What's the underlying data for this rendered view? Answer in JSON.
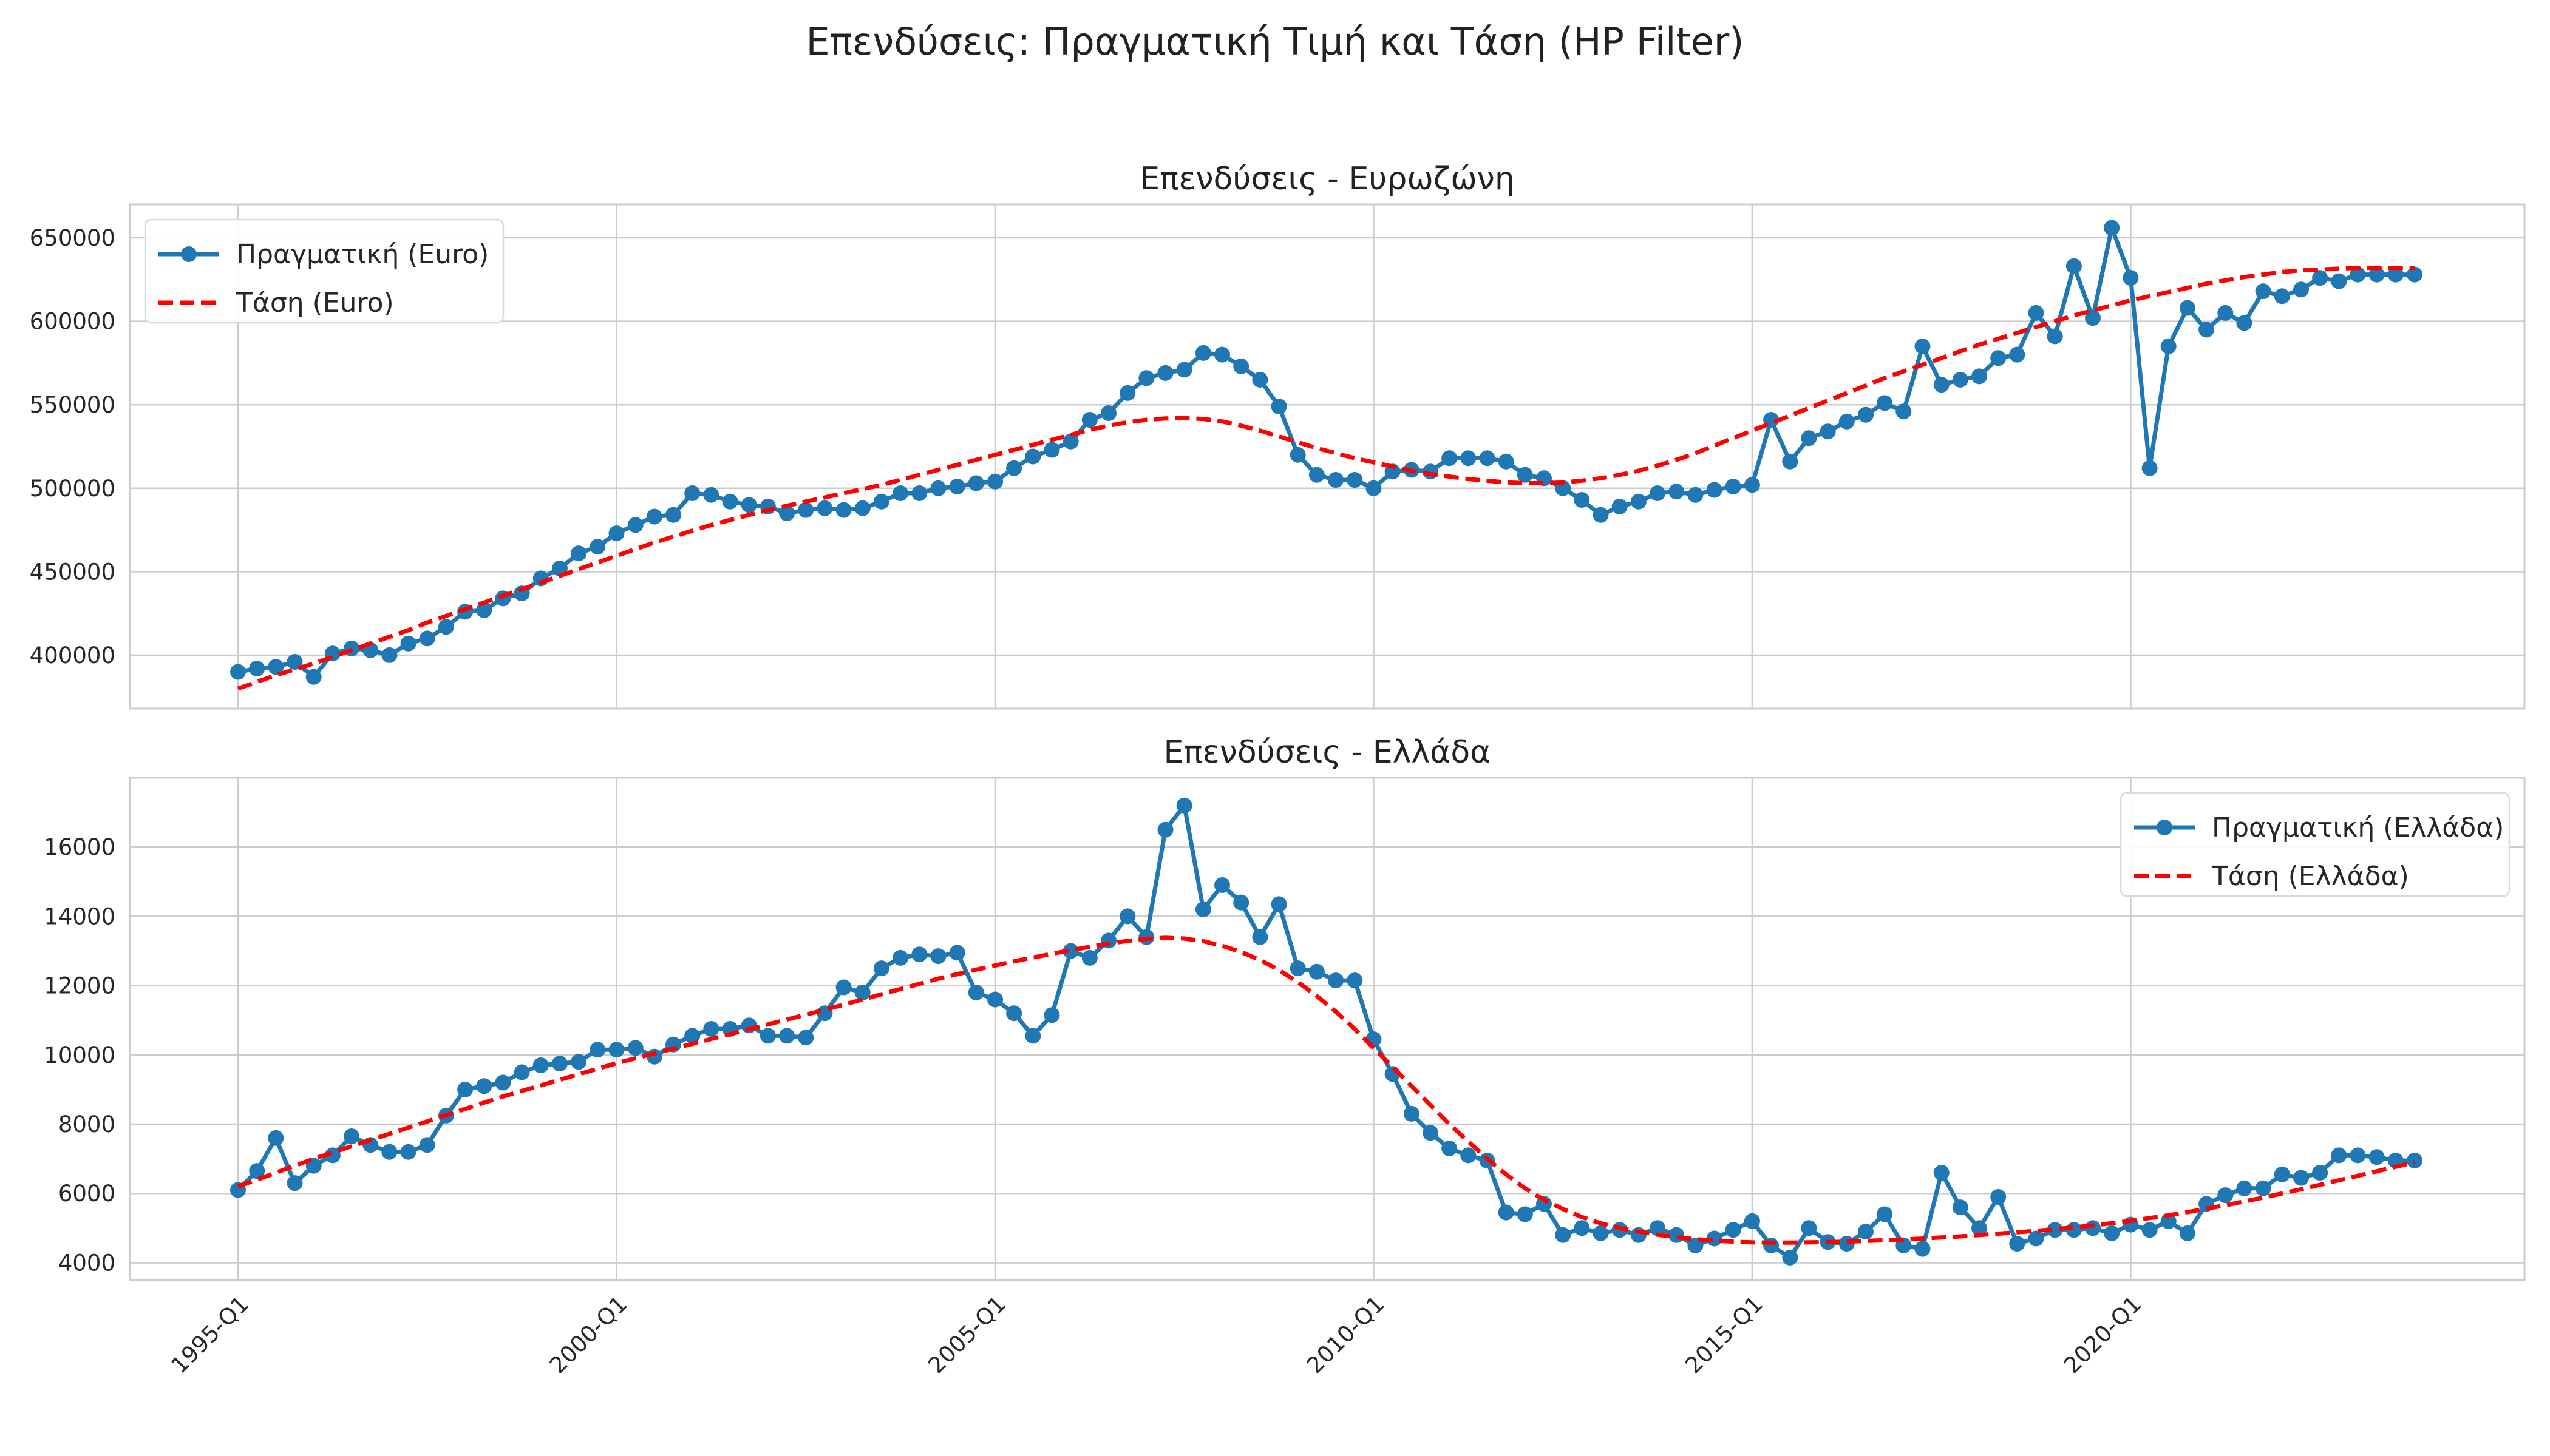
{
  "suptitle": "Επενδύσεις: Πραγματική Τιμή και Τάση (HP Filter)",
  "colors": {
    "actual": "#1f77b4",
    "trend": "#ff0000",
    "grid": "#cccccc",
    "frame": "#cccccc"
  },
  "x_tick_labels": [
    "1995-Q1",
    "2000-Q1",
    "2005-Q1",
    "2010-Q1",
    "2015-Q1",
    "2020-Q1"
  ],
  "quarters_first": "1995-Q1",
  "quarters_last": "2023-Q4",
  "chart_data": [
    {
      "type": "line",
      "title": "Επενδύσεις - Ευρωζώνη",
      "xlabel": "",
      "ylabel": "",
      "ylim": [
        368000,
        670000
      ],
      "yticks": [
        400000,
        450000,
        500000,
        550000,
        600000,
        650000
      ],
      "ytick_labels": [
        "400000",
        "450000",
        "500000",
        "550000",
        "600000",
        "650000"
      ],
      "grid": true,
      "legend_position": "upper left",
      "series": [
        {
          "name": "Πραγματική (Euro)",
          "style": "line-marker",
          "values": [
            390000,
            392000,
            393000,
            396000,
            387000,
            401000,
            404000,
            403000,
            400000,
            407000,
            410000,
            417000,
            426000,
            427000,
            434000,
            437000,
            446000,
            452000,
            461000,
            465000,
            473000,
            478000,
            483000,
            484000,
            497000,
            496000,
            492000,
            490000,
            489000,
            485000,
            487000,
            488000,
            487000,
            488000,
            492000,
            497000,
            497000,
            500000,
            501000,
            503000,
            504000,
            512000,
            519000,
            523000,
            528000,
            541000,
            545000,
            557000,
            566000,
            569000,
            571000,
            581000,
            580000,
            573000,
            565000,
            549000,
            520000,
            508000,
            505000,
            505000,
            500000,
            510000,
            511000,
            510000,
            518000,
            518000,
            518000,
            516000,
            508000,
            506000,
            500000,
            493000,
            484000,
            489000,
            492000,
            497000,
            498000,
            496000,
            499000,
            501000,
            502000,
            541000,
            516000,
            530000,
            534000,
            540000,
            544000,
            551000,
            546000,
            585000,
            562000,
            565000,
            567000,
            578000,
            580000,
            605000,
            591000,
            633000,
            602000,
            656000,
            626000,
            512000,
            585000,
            608000,
            595000,
            605000,
            599000,
            618000,
            615000,
            619000,
            626000,
            624000,
            628000,
            628000,
            628000,
            628000
          ]
        },
        {
          "name": "Τάση (Euro)",
          "style": "dashed",
          "values": [
            380000,
            384000,
            388000,
            391500,
            395000,
            399000,
            403000,
            407000,
            411000,
            415000,
            419500,
            423500,
            427500,
            431500,
            435500,
            439500,
            443500,
            447500,
            451500,
            455500,
            459500,
            463500,
            467500,
            471000,
            474500,
            478000,
            481000,
            484000,
            487000,
            489500,
            492000,
            494500,
            497000,
            499500,
            502000,
            505000,
            508000,
            511000,
            514000,
            517000,
            520000,
            523000,
            526000,
            529000,
            532000,
            535000,
            537500,
            539500,
            541000,
            541800,
            542000,
            541500,
            540000,
            537500,
            534500,
            531000,
            527500,
            524000,
            521000,
            518000,
            515500,
            513000,
            510500,
            508500,
            507000,
            505500,
            504500,
            503500,
            503000,
            503000,
            503500,
            504500,
            506000,
            508000,
            510500,
            513500,
            517000,
            521000,
            525500,
            530000,
            534500,
            539000,
            543500,
            548000,
            552500,
            557000,
            561500,
            566000,
            570000,
            574000,
            578000,
            582000,
            586000,
            589500,
            593000,
            596500,
            600000,
            603500,
            606500,
            609500,
            612500,
            615000,
            617500,
            620000,
            622500,
            624500,
            626500,
            628000,
            629500,
            630500,
            631000,
            631500,
            632000,
            632000,
            632000,
            632000
          ]
        }
      ]
    },
    {
      "type": "line",
      "title": "Επενδύσεις - Ελλάδα",
      "xlabel": "",
      "ylabel": "",
      "ylim": [
        3500,
        18000
      ],
      "yticks": [
        4000,
        6000,
        8000,
        10000,
        12000,
        14000,
        16000
      ],
      "ytick_labels": [
        "4000",
        "6000",
        "8000",
        "10000",
        "12000",
        "14000",
        "16000"
      ],
      "grid": true,
      "legend_position": "upper right",
      "series": [
        {
          "name": "Πραγματική (Ελλάδα)",
          "style": "line-marker",
          "values": [
            6100,
            6650,
            7600,
            6300,
            6800,
            7100,
            7650,
            7400,
            7200,
            7200,
            7400,
            8250,
            9000,
            9100,
            9200,
            9500,
            9700,
            9750,
            9800,
            10150,
            10150,
            10200,
            9950,
            10300,
            10550,
            10750,
            10750,
            10850,
            10550,
            10550,
            10500,
            11200,
            11950,
            11800,
            12500,
            12800,
            12900,
            12850,
            12950,
            11800,
            11600,
            11200,
            10550,
            11150,
            13000,
            12800,
            13300,
            14000,
            13400,
            16500,
            17200,
            14200,
            14900,
            14400,
            13400,
            14350,
            12500,
            12400,
            12150,
            12150,
            10450,
            9450,
            8300,
            7750,
            7300,
            7100,
            6950,
            5450,
            5400,
            5700,
            4800,
            5000,
            4850,
            4950,
            4800,
            5000,
            4800,
            4500,
            4700,
            4950,
            5200,
            4500,
            4150,
            5000,
            4600,
            4550,
            4900,
            5400,
            4500,
            4400,
            6600,
            5600,
            5000,
            5900,
            4550,
            4700,
            4950,
            4950,
            5000,
            4850,
            5100,
            4950,
            5200,
            4850,
            5700,
            5950,
            6150,
            6150,
            6550,
            6450,
            6600,
            7100,
            7100,
            7050,
            6950,
            6950
          ]
        },
        {
          "name": "Τάση (Ελλάδα)",
          "style": "dashed",
          "values": [
            6200,
            6400,
            6600,
            6800,
            7000,
            7180,
            7360,
            7540,
            7720,
            7900,
            8080,
            8260,
            8440,
            8620,
            8800,
            8960,
            9120,
            9280,
            9440,
            9600,
            9760,
            9900,
            10040,
            10180,
            10320,
            10460,
            10600,
            10740,
            10880,
            11020,
            11160,
            11300,
            11450,
            11600,
            11750,
            11900,
            12050,
            12200,
            12330,
            12460,
            12580,
            12700,
            12810,
            12920,
            13020,
            13120,
            13210,
            13290,
            13350,
            13380,
            13360,
            13280,
            13150,
            12970,
            12740,
            12450,
            12100,
            11700,
            11250,
            10750,
            10200,
            9650,
            9100,
            8550,
            8000,
            7500,
            7000,
            6550,
            6150,
            5820,
            5550,
            5320,
            5140,
            5000,
            4900,
            4810,
            4740,
            4680,
            4640,
            4610,
            4590,
            4580,
            4580,
            4590,
            4600,
            4610,
            4630,
            4650,
            4670,
            4700,
            4730,
            4760,
            4800,
            4840,
            4880,
            4920,
            4970,
            5020,
            5080,
            5140,
            5210,
            5290,
            5370,
            5460,
            5560,
            5660,
            5770,
            5880,
            6000,
            6120,
            6250,
            6380,
            6510,
            6640,
            6770,
            6900
          ]
        }
      ]
    }
  ]
}
